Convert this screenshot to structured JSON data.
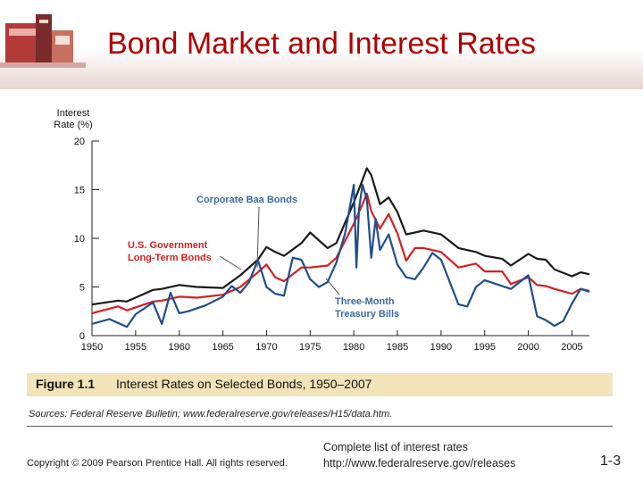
{
  "slide": {
    "title": "Bond Market and Interest Rates",
    "figure_number": "Figure 1.1",
    "figure_title": "Interest Rates on Selected Bonds, 1950–2007",
    "sources": "Sources: Federal Reserve Bulletin; www.federalreserve.gov/releases/H15/data.htm.",
    "copyright": "Copyright © 2009 Pearson Prentice Hall. All rights reserved.",
    "complete_list": "Complete list of interest rates",
    "link": "http://www.federalreserve.gov/releases",
    "slide_number": "1-3"
  },
  "chart_data": {
    "type": "line",
    "ylabel": "Interest Rate (%)",
    "ylabel_lines": [
      "Interest",
      "Rate (%)"
    ],
    "xlim": [
      1950,
      2007
    ],
    "ylim": [
      0,
      20
    ],
    "yticks": [
      0,
      5,
      10,
      15,
      20
    ],
    "xticks": [
      1950,
      1955,
      1960,
      1965,
      1970,
      1975,
      1980,
      1985,
      1990,
      1995,
      2000,
      2005
    ],
    "grid": false,
    "annotations": [
      {
        "text": "Corporate Baa Bonds",
        "color": "#3a6aa0"
      },
      {
        "text": "U.S. Government",
        "color": "#d62020"
      },
      {
        "text": "Long-Term Bonds",
        "color": "#d62020"
      },
      {
        "text": "Three-Month",
        "color": "#3a6aa0"
      },
      {
        "text": "Treasury Bills",
        "color": "#3a6aa0"
      }
    ],
    "series": [
      {
        "key": "baa",
        "color": "#1a1a1a",
        "x": [
          1950,
          1953,
          1954,
          1957,
          1958,
          1960,
          1962,
          1965,
          1967,
          1969,
          1970,
          1971,
          1972,
          1974,
          1975,
          1977,
          1978,
          1980,
          1981,
          1981.5,
          1982,
          1983,
          1984,
          1985,
          1986,
          1987,
          1988,
          1990,
          1992,
          1994,
          1995,
          1997,
          1998,
          2000,
          2001,
          2002,
          2003,
          2005,
          2006,
          2007
        ],
        "y": [
          3.2,
          3.6,
          3.5,
          4.7,
          4.8,
          5.2,
          5.0,
          4.9,
          6.2,
          7.8,
          9.1,
          8.6,
          8.2,
          9.5,
          10.6,
          9.0,
          9.5,
          13.7,
          16.0,
          17.2,
          16.5,
          13.5,
          14.2,
          12.7,
          10.4,
          10.6,
          10.8,
          10.4,
          9.0,
          8.6,
          8.2,
          7.9,
          7.2,
          8.4,
          7.9,
          7.8,
          6.8,
          6.1,
          6.5,
          6.3
        ]
      },
      {
        "key": "gov",
        "color": "#d62020",
        "x": [
          1950,
          1953,
          1954,
          1957,
          1958,
          1960,
          1962,
          1965,
          1967,
          1969,
          1970,
          1971,
          1972,
          1974,
          1975,
          1977,
          1978,
          1980,
          1981,
          1981.5,
          1982,
          1983,
          1984,
          1985,
          1986,
          1987,
          1988,
          1990,
          1992,
          1994,
          1995,
          1997,
          1998,
          2000,
          2001,
          2002,
          2003,
          2005,
          2006,
          2007
        ],
        "y": [
          2.3,
          3.0,
          2.6,
          3.5,
          3.6,
          4.0,
          3.9,
          4.2,
          5.0,
          6.5,
          7.3,
          6.0,
          5.6,
          7.0,
          7.0,
          7.2,
          8.0,
          11.5,
          13.5,
          14.6,
          12.8,
          11.0,
          12.5,
          10.5,
          7.7,
          9.0,
          9.0,
          8.6,
          7.0,
          7.4,
          6.6,
          6.6,
          5.3,
          6.0,
          5.2,
          5.1,
          4.8,
          4.3,
          4.8,
          4.6
        ]
      },
      {
        "key": "tbill",
        "color": "#1f4e8c",
        "x": [
          1950,
          1952,
          1954,
          1955,
          1957,
          1958,
          1959,
          1960,
          1961,
          1963,
          1965,
          1966,
          1967,
          1968,
          1969,
          1970,
          1971,
          1972,
          1973,
          1974,
          1975,
          1976,
          1977,
          1978,
          1979,
          1980,
          1980.3,
          1980.6,
          1981,
          1981.5,
          1982,
          1982.5,
          1983,
          1984,
          1985,
          1986,
          1987,
          1988,
          1989,
          1990,
          1992,
          1993,
          1994,
          1995,
          1997,
          1998,
          2000,
          2001,
          2002,
          2003,
          2004,
          2005,
          2006,
          2007
        ],
        "y": [
          1.2,
          1.7,
          0.9,
          2.2,
          3.4,
          1.2,
          4.4,
          2.3,
          2.5,
          3.1,
          4.0,
          5.1,
          4.4,
          5.5,
          7.8,
          5.0,
          4.3,
          4.1,
          8.0,
          7.8,
          5.8,
          5.0,
          5.5,
          7.5,
          10.5,
          15.5,
          7.0,
          13.0,
          15.5,
          14.0,
          8.0,
          12.0,
          8.8,
          10.4,
          7.3,
          6.0,
          5.8,
          7.0,
          8.5,
          7.8,
          3.2,
          3.0,
          5.0,
          5.7,
          5.1,
          4.8,
          6.2,
          2.0,
          1.6,
          1.0,
          1.5,
          3.3,
          4.8,
          4.5
        ]
      }
    ]
  }
}
